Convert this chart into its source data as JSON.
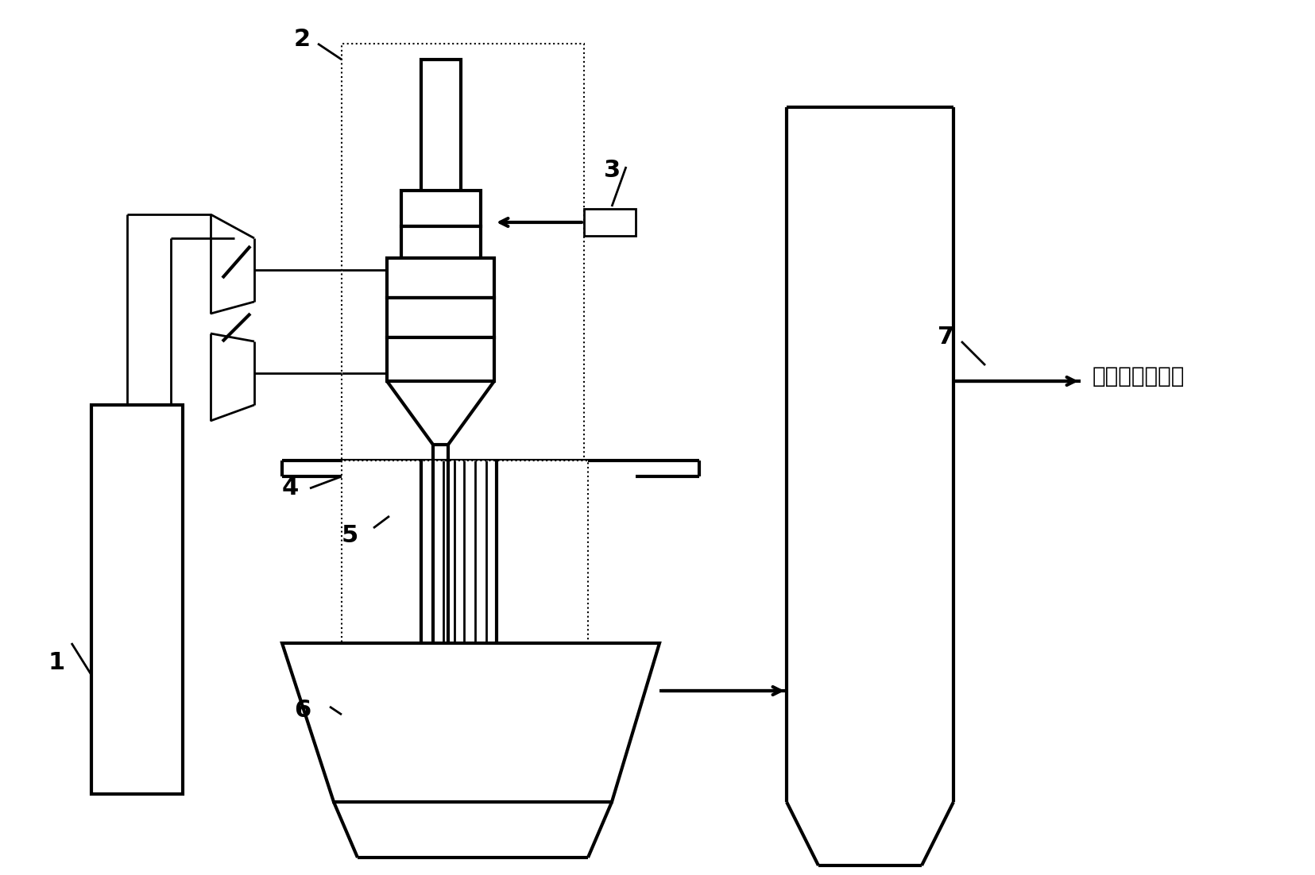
{
  "bg_color": "#ffffff",
  "line_color": "#000000",
  "thick_lw": 3.0,
  "thin_lw": 2.0,
  "dot_lw": 1.5,
  "label_1": "1",
  "label_2": "2",
  "label_3": "3",
  "label_4": "4",
  "label_5": "5",
  "label_6": "6",
  "label_7": "7",
  "right_text": "至气体分离系统",
  "font_size_labels": 20,
  "font_size_text": 20
}
